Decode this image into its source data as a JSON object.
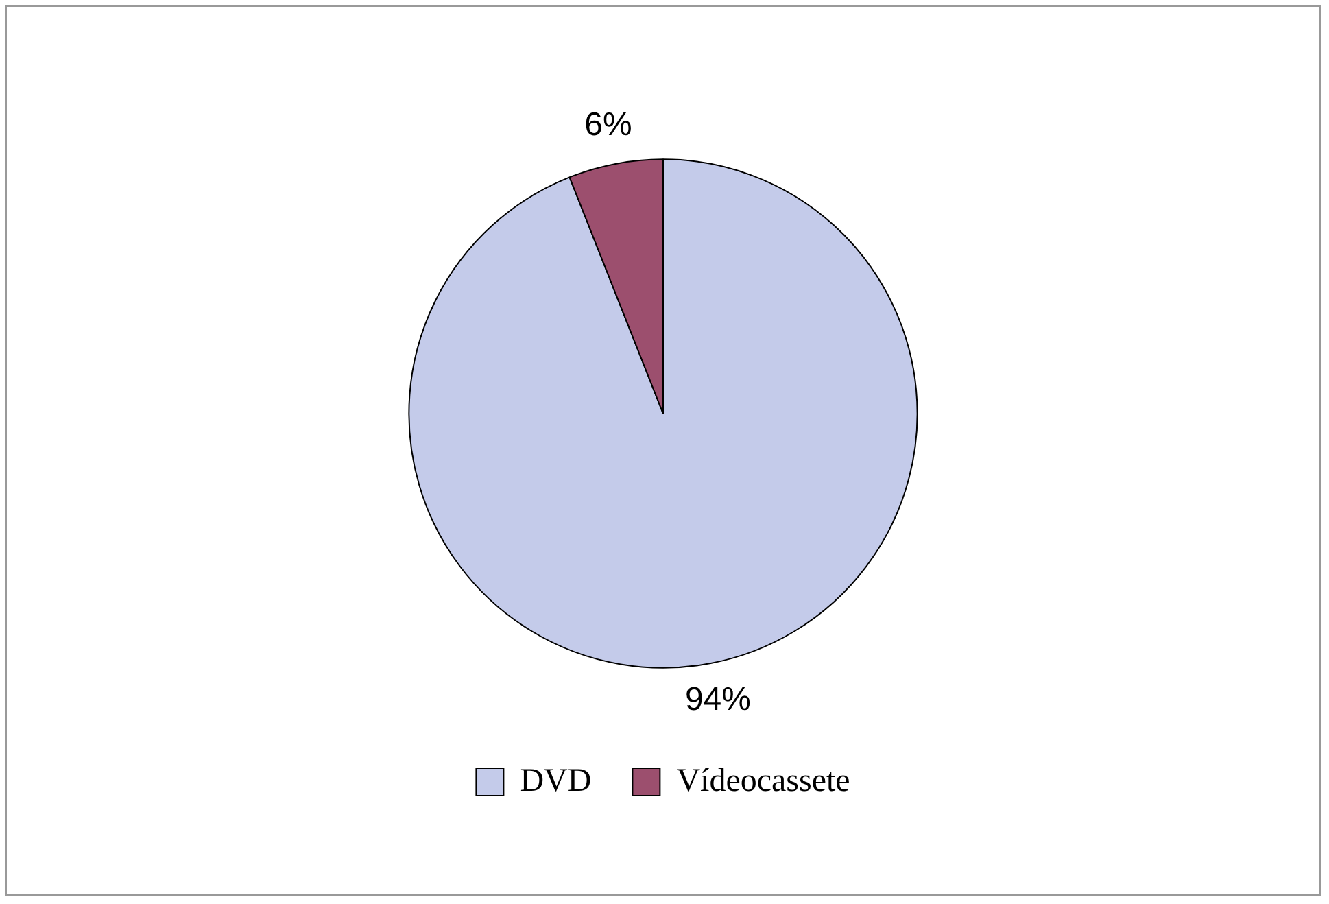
{
  "chart_data": {
    "type": "pie",
    "categories": [
      "DVD",
      "Vídeocassete"
    ],
    "values": [
      94,
      6
    ],
    "colors": [
      "#c4cbea",
      "#9c4f6e"
    ],
    "value_labels": [
      "94%",
      "6%"
    ],
    "legend": "bottom"
  }
}
